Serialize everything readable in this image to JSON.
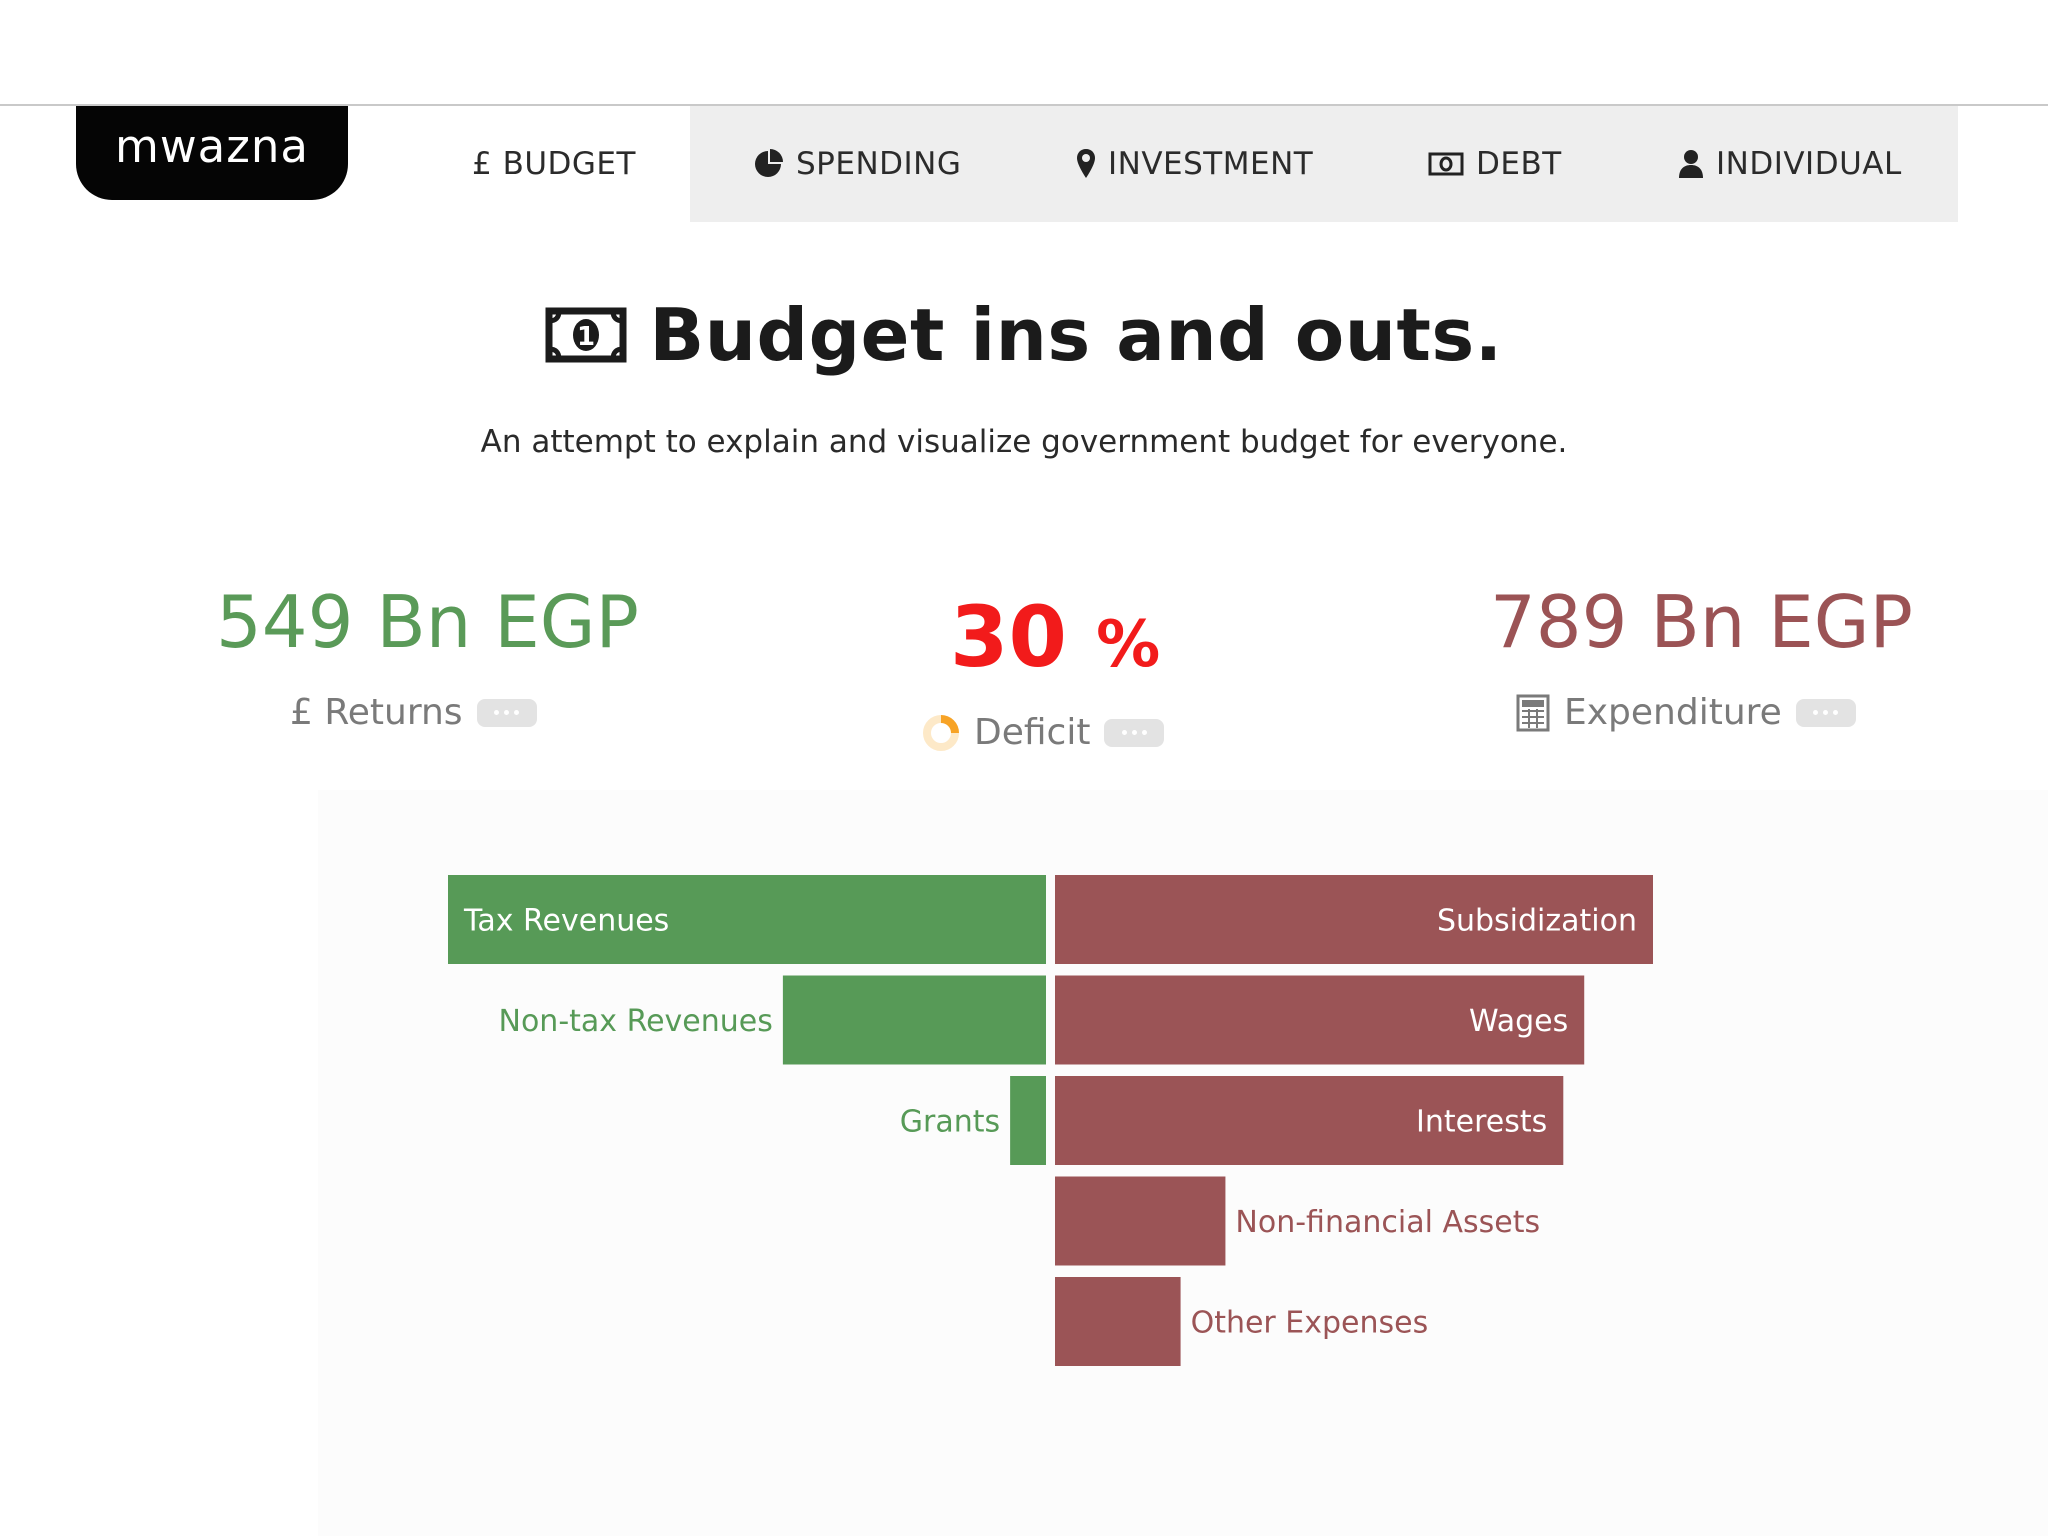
{
  "brand": {
    "logo": "mwazna"
  },
  "nav": [
    {
      "label": "£ BUDGET",
      "icon": "pound-icon",
      "active": true
    },
    {
      "label": "SPENDING",
      "icon": "pie-chart-icon"
    },
    {
      "label": "INVESTMENT",
      "icon": "map-marker-icon"
    },
    {
      "label": "DEBT",
      "icon": "money-bill-icon"
    },
    {
      "label": "INDIVIDUAL",
      "icon": "user-icon"
    }
  ],
  "hero": {
    "title": "Budget ins and outs.",
    "title_icon": "money-bill-icon",
    "subtitle": "An attempt to explain and visualize government budget for everyone."
  },
  "stats": {
    "returns": {
      "value": "549 Bn EGP",
      "label": "£ Returns",
      "color": "#5a9a58"
    },
    "deficit": {
      "value": "30",
      "unit": "%",
      "label": "Deficit",
      "icon": "progress-spinner-icon",
      "color": "#f21b1b"
    },
    "expenditure": {
      "value": "789 Bn EGP",
      "label": "Expenditure",
      "icon": "calculator-icon",
      "color": "#9b5355"
    }
  },
  "colors": {
    "revenue": "#579a57",
    "expense": "#9b5456",
    "inactive_tab": "#eeeeee"
  },
  "chart_data": {
    "type": "bar",
    "layout": "diverging",
    "revenues": {
      "categories": [
        "Tax Revenues",
        "Non-tax Revenues",
        "Grants"
      ],
      "values": [
        100,
        44,
        6
      ]
    },
    "expenditures": {
      "categories": [
        "Subsidization",
        "Wages",
        "Interests",
        "Non-financial Assets",
        "Other Expenses"
      ],
      "values": [
        100,
        88.5,
        85,
        28.5,
        21
      ]
    }
  }
}
